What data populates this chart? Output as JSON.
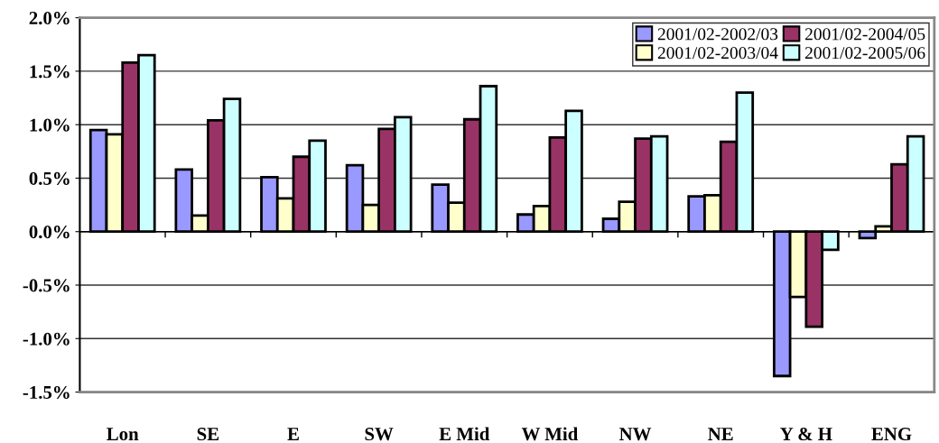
{
  "chart_data": {
    "type": "bar",
    "categories": [
      "Lon",
      "SE",
      "E",
      "SW",
      "E Mid",
      "W Mid",
      "NW",
      "NE",
      "Y & H",
      "ENG"
    ],
    "series": [
      {
        "name": "2001/02-2002/03",
        "color": "#9999ff",
        "values": [
          0.95,
          0.58,
          0.51,
          0.62,
          0.44,
          0.16,
          0.12,
          0.33,
          -1.35,
          -0.06
        ]
      },
      {
        "name": "2001/02-2003/04",
        "color": "#ffffcc",
        "values": [
          0.91,
          0.15,
          0.31,
          0.25,
          0.27,
          0.24,
          0.28,
          0.34,
          -0.61,
          0.05
        ]
      },
      {
        "name": "2001/02-2004/05",
        "color": "#993366",
        "values": [
          1.58,
          1.04,
          0.7,
          0.96,
          1.05,
          0.88,
          0.87,
          0.84,
          -0.89,
          0.63
        ]
      },
      {
        "name": "2001/02-2005/06",
        "color": "#ccffff",
        "values": [
          1.65,
          1.24,
          0.85,
          1.07,
          1.36,
          1.13,
          0.89,
          1.3,
          -0.17,
          0.89
        ]
      }
    ],
    "ylim": [
      -1.5,
      2.0
    ],
    "yticks": [
      {
        "value": -1.5,
        "label": "-1.5%"
      },
      {
        "value": -1.0,
        "label": "-1.0%"
      },
      {
        "value": -0.5,
        "label": "-0.5%"
      },
      {
        "value": 0.0,
        "label": "0.0%"
      },
      {
        "value": 0.5,
        "label": "0.5%"
      },
      {
        "value": 1.0,
        "label": "1.0%"
      },
      {
        "value": 1.5,
        "label": "1.5%"
      },
      {
        "value": 2.0,
        "label": "2.0%"
      }
    ],
    "grid": "y",
    "legend": "top right"
  }
}
